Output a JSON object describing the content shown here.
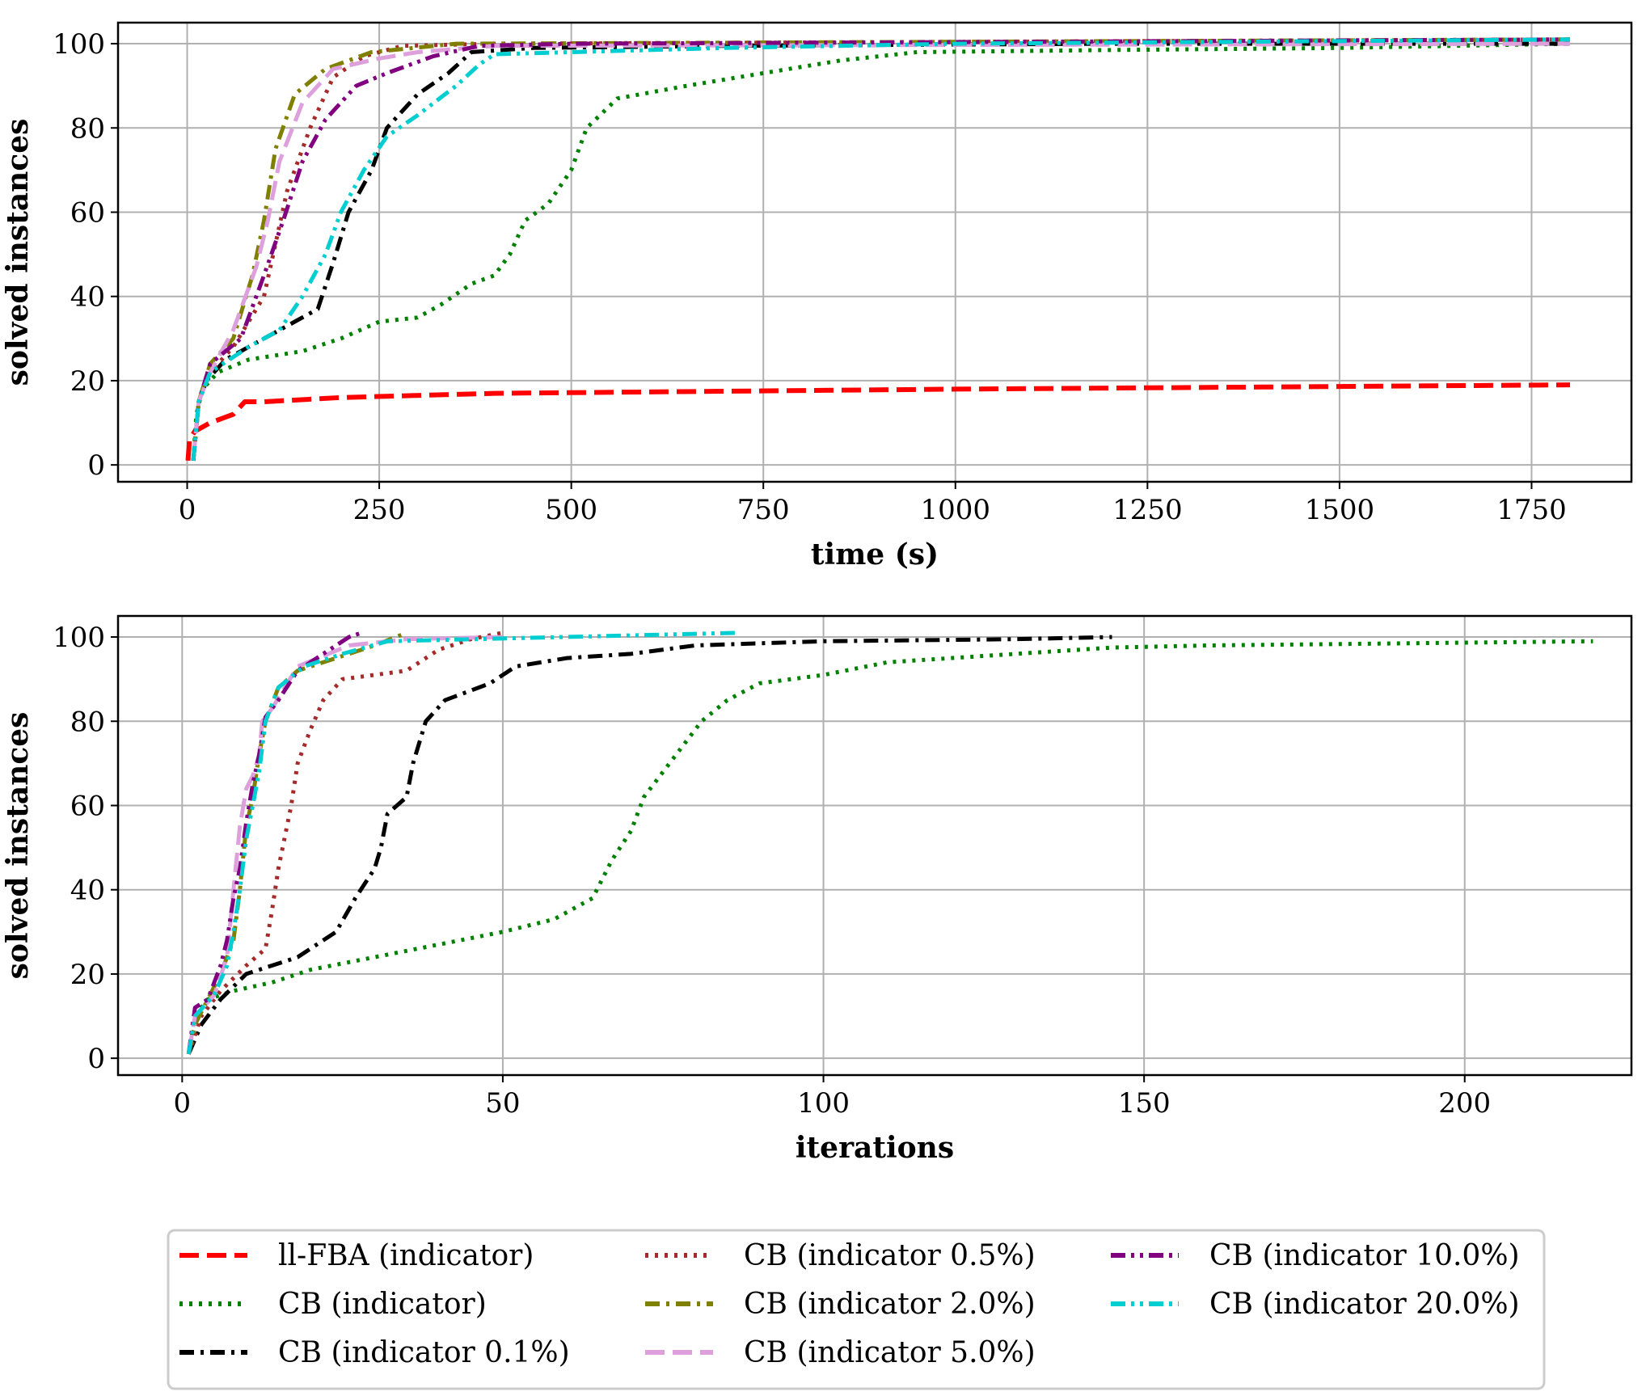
{
  "figure": {
    "legend_location": "bottom-center, below both panels",
    "legend": [
      {
        "label": "ll-FBA (indicator)",
        "color": "#ff0000",
        "style": "dashed"
      },
      {
        "label": "CB (indicator)",
        "color": "#008000",
        "style": "dotted"
      },
      {
        "label": "CB (indicator 0.1%)",
        "color": "#000000",
        "style": "dashdot"
      },
      {
        "label": "CB (indicator 0.5%)",
        "color": "#a52a2a",
        "style": "dotted"
      },
      {
        "label": "CB (indicator 2.0%)",
        "color": "#808000",
        "style": "dashdot"
      },
      {
        "label": "CB (indicator 5.0%)",
        "color": "#dda0dd",
        "style": "dashed"
      },
      {
        "label": "CB (indicator 10.0%)",
        "color": "#800080",
        "style": "dashdotdot"
      },
      {
        "label": "CB (indicator 20.0%)",
        "color": "#00ced1",
        "style": "dashdotdot"
      }
    ]
  },
  "chart_data": [
    {
      "type": "line",
      "xlabel": "time (s)",
      "ylabel": "solved instances",
      "xlim": [
        -90,
        1880
      ],
      "ylim": [
        -4,
        105
      ],
      "xticks": [
        0,
        250,
        500,
        750,
        1000,
        1250,
        1500,
        1750
      ],
      "yticks": [
        0,
        20,
        40,
        60,
        80,
        100
      ],
      "grid": true,
      "series": [
        {
          "name": "ll-FBA (indicator)",
          "points": [
            [
              1,
              1
            ],
            [
              3,
              6
            ],
            [
              10,
              8
            ],
            [
              30,
              10
            ],
            [
              60,
              12
            ],
            [
              75,
              15
            ],
            [
              100,
              15
            ],
            [
              200,
              16
            ],
            [
              400,
              17
            ],
            [
              700,
              17.5
            ],
            [
              1000,
              18
            ],
            [
              1400,
              18.5
            ],
            [
              1800,
              19
            ]
          ]
        },
        {
          "name": "CB (indicator)",
          "points": [
            [
              8,
              1
            ],
            [
              12,
              12
            ],
            [
              20,
              18
            ],
            [
              40,
              22
            ],
            [
              80,
              25
            ],
            [
              150,
              27
            ],
            [
              200,
              30
            ],
            [
              250,
              34
            ],
            [
              300,
              35
            ],
            [
              330,
              38
            ],
            [
              370,
              43
            ],
            [
              400,
              45
            ],
            [
              420,
              50
            ],
            [
              440,
              58
            ],
            [
              470,
              62
            ],
            [
              500,
              70
            ],
            [
              520,
              80
            ],
            [
              560,
              87
            ],
            [
              650,
              90
            ],
            [
              750,
              93
            ],
            [
              850,
              96
            ],
            [
              950,
              98
            ],
            [
              1200,
              98.5
            ],
            [
              1500,
              99
            ],
            [
              1800,
              100
            ]
          ]
        },
        {
          "name": "CB (indicator 0.1%)",
          "points": [
            [
              8,
              1
            ],
            [
              15,
              15
            ],
            [
              25,
              20
            ],
            [
              50,
              25
            ],
            [
              80,
              28
            ],
            [
              120,
              32
            ],
            [
              170,
              37
            ],
            [
              190,
              48
            ],
            [
              210,
              60
            ],
            [
              240,
              70
            ],
            [
              260,
              80
            ],
            [
              300,
              88
            ],
            [
              340,
              93
            ],
            [
              370,
              98
            ],
            [
              450,
              99
            ],
            [
              700,
              99.5
            ],
            [
              1200,
              100
            ],
            [
              1800,
              100
            ]
          ]
        },
        {
          "name": "CB (indicator 0.5%)",
          "points": [
            [
              8,
              1
            ],
            [
              15,
              15
            ],
            [
              30,
              22
            ],
            [
              60,
              28
            ],
            [
              100,
              40
            ],
            [
              130,
              65
            ],
            [
              160,
              80
            ],
            [
              190,
              92
            ],
            [
              230,
              97
            ],
            [
              280,
              99.5
            ],
            [
              400,
              100
            ],
            [
              1800,
              101
            ]
          ]
        },
        {
          "name": "CB (indicator 2.0%)",
          "points": [
            [
              8,
              1
            ],
            [
              15,
              15
            ],
            [
              30,
              24
            ],
            [
              60,
              30
            ],
            [
              85,
              45
            ],
            [
              100,
              58
            ],
            [
              115,
              75
            ],
            [
              140,
              88
            ],
            [
              180,
              94
            ],
            [
              240,
              98
            ],
            [
              350,
              100
            ],
            [
              1800,
              101
            ]
          ]
        },
        {
          "name": "CB (indicator 5.0%)",
          "points": [
            [
              8,
              1
            ],
            [
              15,
              15
            ],
            [
              30,
              22
            ],
            [
              60,
              32
            ],
            [
              90,
              47
            ],
            [
              105,
              58
            ],
            [
              120,
              72
            ],
            [
              150,
              86
            ],
            [
              190,
              94
            ],
            [
              250,
              96.5
            ],
            [
              300,
              98
            ],
            [
              400,
              99.5
            ],
            [
              1800,
              100
            ]
          ]
        },
        {
          "name": "CB (indicator 10.0%)",
          "points": [
            [
              8,
              1
            ],
            [
              15,
              15
            ],
            [
              30,
              24
            ],
            [
              70,
              30
            ],
            [
              100,
              45
            ],
            [
              125,
              58
            ],
            [
              150,
              72
            ],
            [
              180,
              82
            ],
            [
              220,
              90
            ],
            [
              260,
              93
            ],
            [
              320,
              97
            ],
            [
              380,
              99.5
            ],
            [
              500,
              100
            ],
            [
              1800,
              101
            ]
          ]
        },
        {
          "name": "CB (indicator 20.0%)",
          "points": [
            [
              8,
              1
            ],
            [
              15,
              15
            ],
            [
              30,
              22
            ],
            [
              80,
              28
            ],
            [
              120,
              32
            ],
            [
              150,
              40
            ],
            [
              180,
              50
            ],
            [
              200,
              60
            ],
            [
              230,
              70
            ],
            [
              260,
              78
            ],
            [
              300,
              83
            ],
            [
              350,
              90
            ],
            [
              380,
              95
            ],
            [
              400,
              97.5
            ],
            [
              500,
              98
            ],
            [
              700,
              99
            ],
            [
              1000,
              100
            ],
            [
              1800,
              101
            ]
          ]
        }
      ]
    },
    {
      "type": "line",
      "xlabel": "iterations",
      "ylabel": "solved instances",
      "xlim": [
        -10,
        226
      ],
      "ylim": [
        -4,
        105
      ],
      "xticks": [
        0,
        50,
        100,
        150,
        200
      ],
      "yticks": [
        0,
        20,
        40,
        60,
        80,
        100
      ],
      "grid": true,
      "series": [
        {
          "name": "CB (indicator)",
          "points": [
            [
              1,
              1
            ],
            [
              2,
              10
            ],
            [
              4,
              14
            ],
            [
              8,
              16
            ],
            [
              14,
              18
            ],
            [
              20,
              21
            ],
            [
              30,
              24
            ],
            [
              40,
              27
            ],
            [
              50,
              30
            ],
            [
              58,
              33
            ],
            [
              64,
              38
            ],
            [
              67,
              47
            ],
            [
              70,
              54
            ],
            [
              72,
              62
            ],
            [
              75,
              68
            ],
            [
              78,
              74
            ],
            [
              81,
              80
            ],
            [
              85,
              85
            ],
            [
              90,
              89
            ],
            [
              100,
              91
            ],
            [
              110,
              94
            ],
            [
              130,
              96
            ],
            [
              145,
              97.5
            ],
            [
              160,
              98
            ],
            [
              220,
              99
            ]
          ]
        },
        {
          "name": "CB (indicator 0.1%)",
          "points": [
            [
              1,
              1
            ],
            [
              3,
              8
            ],
            [
              6,
              14
            ],
            [
              10,
              20
            ],
            [
              14,
              22
            ],
            [
              18,
              24
            ],
            [
              24,
              30
            ],
            [
              27,
              38
            ],
            [
              30,
              45
            ],
            [
              31,
              50
            ],
            [
              32,
              58
            ],
            [
              35,
              62
            ],
            [
              36,
              70
            ],
            [
              38,
              80
            ],
            [
              41,
              85
            ],
            [
              48,
              89
            ],
            [
              52,
              93
            ],
            [
              60,
              95
            ],
            [
              70,
              96
            ],
            [
              80,
              98
            ],
            [
              100,
              99
            ],
            [
              130,
              99.5
            ],
            [
              145,
              100
            ]
          ]
        },
        {
          "name": "CB (indicator 0.5%)",
          "points": [
            [
              1,
              1
            ],
            [
              3,
              10
            ],
            [
              6,
              16
            ],
            [
              10,
              22
            ],
            [
              13,
              26
            ],
            [
              14,
              35
            ],
            [
              15,
              45
            ],
            [
              17,
              60
            ],
            [
              18,
              70
            ],
            [
              20,
              78
            ],
            [
              22,
              85
            ],
            [
              25,
              90
            ],
            [
              35,
              92
            ],
            [
              40,
              97
            ],
            [
              45,
              99.5
            ],
            [
              50,
              101
            ]
          ]
        },
        {
          "name": "CB (indicator 2.0%)",
          "points": [
            [
              1,
              1
            ],
            [
              2,
              8
            ],
            [
              4,
              14
            ],
            [
              6,
              20
            ],
            [
              8,
              28
            ],
            [
              9,
              40
            ],
            [
              10,
              55
            ],
            [
              11,
              62
            ],
            [
              12,
              72
            ],
            [
              13,
              80
            ],
            [
              15,
              88
            ],
            [
              18,
              92
            ],
            [
              24,
              95
            ],
            [
              30,
              98
            ],
            [
              35,
              101
            ]
          ]
        },
        {
          "name": "CB (indicator 5.0%)",
          "points": [
            [
              1,
              1
            ],
            [
              2,
              10
            ],
            [
              5,
              15
            ],
            [
              7,
              24
            ],
            [
              8,
              40
            ],
            [
              9,
              55
            ],
            [
              10,
              64
            ],
            [
              11,
              67
            ],
            [
              12,
              72
            ],
            [
              12.5,
              80
            ],
            [
              14,
              83
            ],
            [
              18,
              93
            ],
            [
              26,
              98
            ],
            [
              35,
              99.5
            ],
            [
              50,
              100
            ]
          ]
        },
        {
          "name": "CB (indicator 10.0%)",
          "points": [
            [
              1,
              1
            ],
            [
              2,
              12
            ],
            [
              4,
              14
            ],
            [
              6,
              22
            ],
            [
              7,
              28
            ],
            [
              8,
              38
            ],
            [
              9,
              45
            ],
            [
              10,
              56
            ],
            [
              11,
              65
            ],
            [
              12,
              72
            ],
            [
              13,
              81
            ],
            [
              15,
              85
            ],
            [
              18,
              92
            ],
            [
              22,
              96
            ],
            [
              26,
              100
            ],
            [
              28,
              101
            ]
          ]
        },
        {
          "name": "CB (indicator 20.0%)",
          "points": [
            [
              1,
              1
            ],
            [
              2,
              10
            ],
            [
              5,
              15
            ],
            [
              7,
              22
            ],
            [
              8,
              30
            ],
            [
              9,
              40
            ],
            [
              10,
              52
            ],
            [
              11,
              60
            ],
            [
              12,
              68
            ],
            [
              13,
              80
            ],
            [
              15,
              88
            ],
            [
              19,
              93
            ],
            [
              25,
              96
            ],
            [
              32,
              99
            ],
            [
              87,
              101
            ]
          ]
        }
      ]
    }
  ]
}
